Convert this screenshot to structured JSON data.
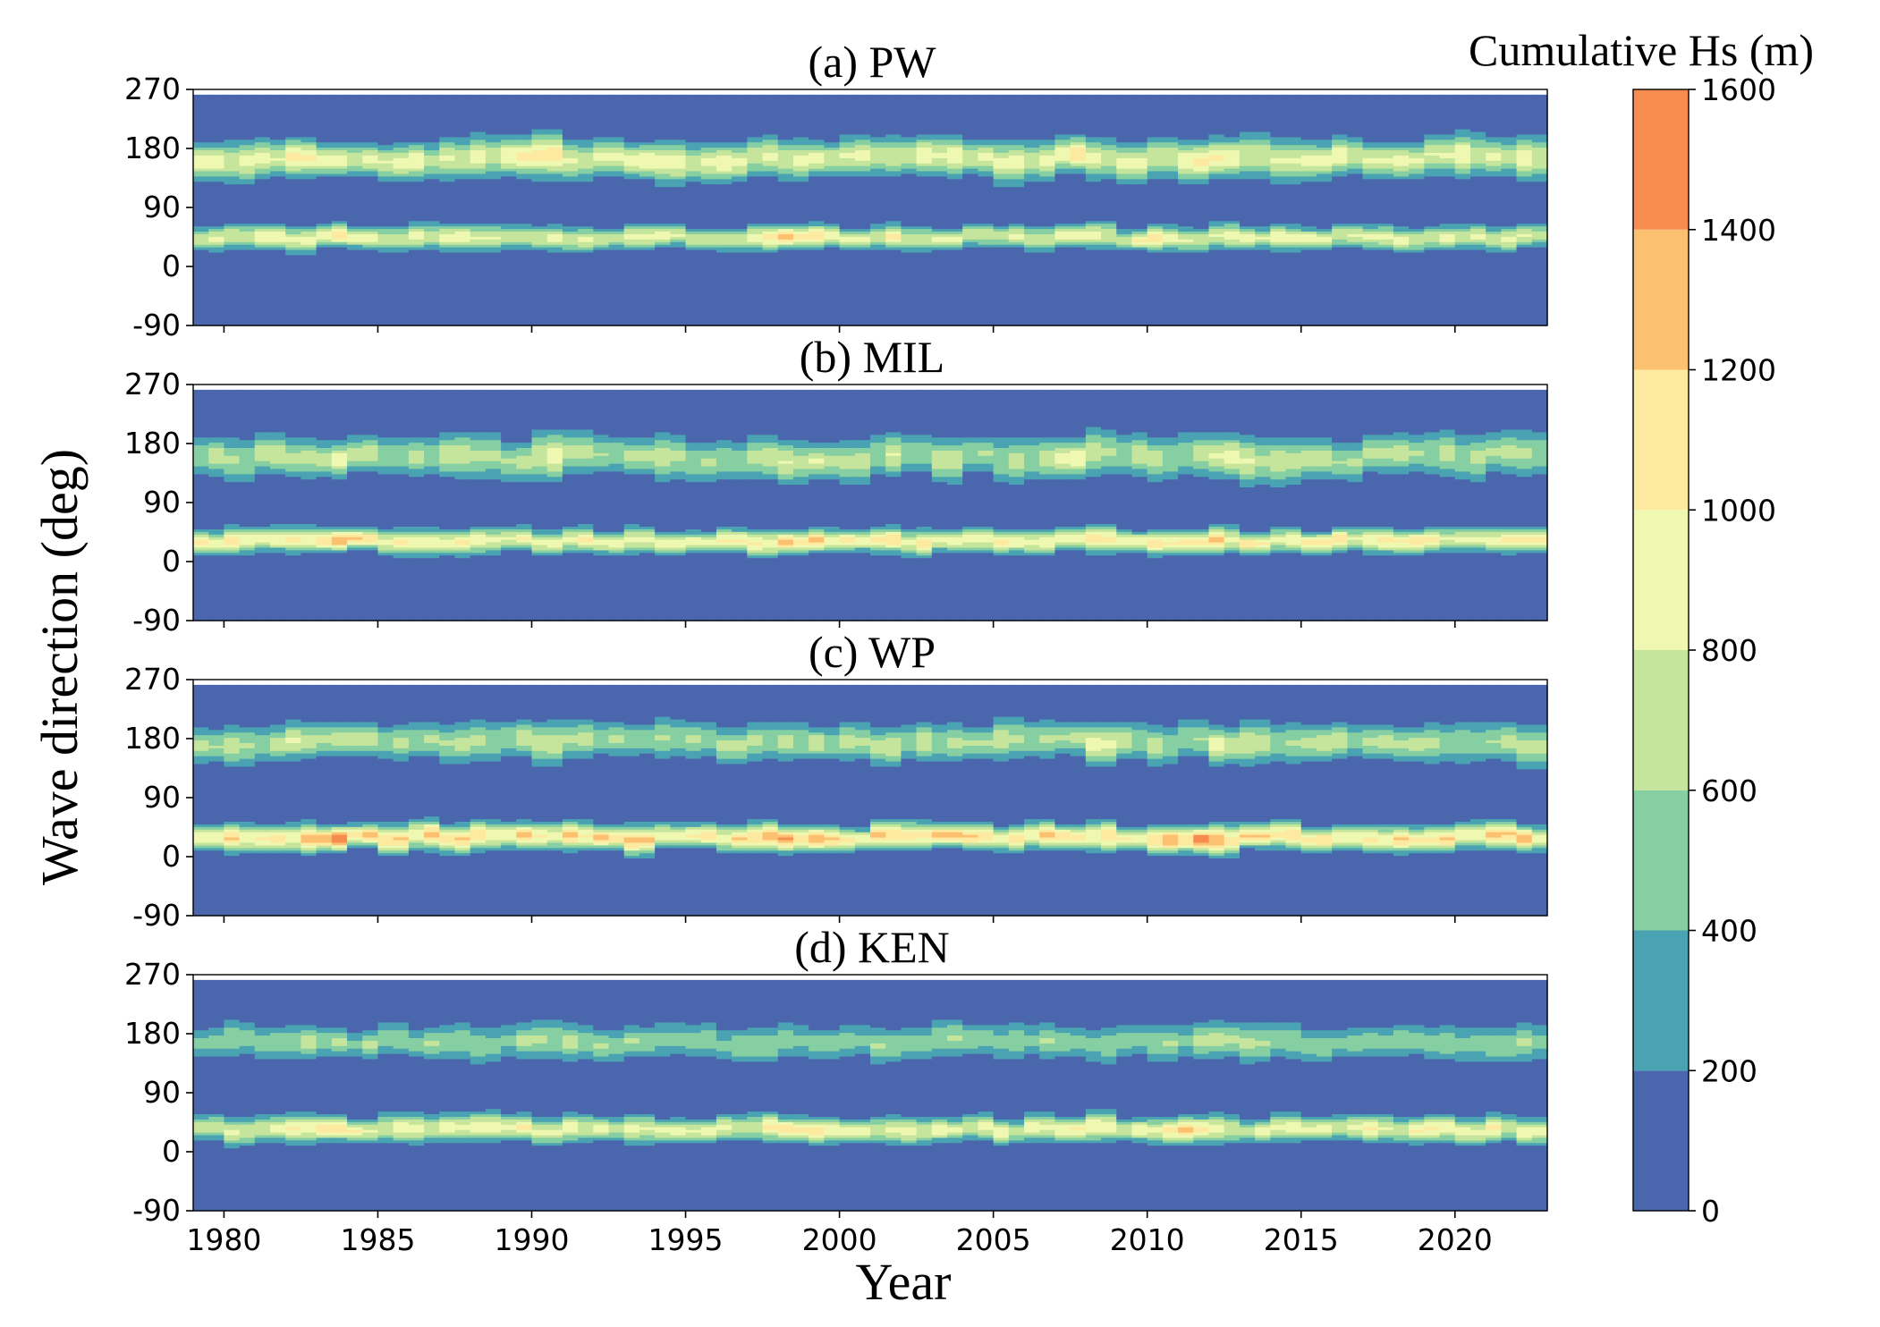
{
  "colorbar": {
    "title": "Cumulative Hs (m)",
    "levels": [
      0,
      200,
      400,
      600,
      800,
      1000,
      1200,
      1400,
      1600
    ],
    "tick_labels": [
      "0",
      "200",
      "400",
      "600",
      "800",
      "1000",
      "1200",
      "1400",
      "1600"
    ],
    "colors": [
      "#4a66ad",
      "#4aa3b2",
      "#86cfa3",
      "#c6e59c",
      "#eff8b0",
      "#fdeaa0",
      "#fbc070",
      "#f68c50"
    ]
  },
  "chart_data": [
    {
      "type": "heatmap",
      "subplot": "(a) PW",
      "title": "(a) PW",
      "xlabel": "Year",
      "ylabel": "Wave direction (deg)",
      "xlim": [
        1979,
        2023
      ],
      "ylim": [
        -90,
        270
      ],
      "x_ticks": [
        1980,
        1985,
        1990,
        1995,
        2000,
        2005,
        2010,
        2015,
        2020
      ],
      "x_tick_labels": [
        "1980",
        "1985",
        "1990",
        "1995",
        "2000",
        "2005",
        "2010",
        "2015",
        "2020"
      ],
      "y_ticks": [
        -90,
        0,
        90,
        180,
        270
      ],
      "y_tick_labels": [
        "-90",
        "0",
        "90",
        "180",
        "270"
      ],
      "data_top_deg": 262,
      "bands": [
        {
          "center_deg": 165,
          "sigma_deg": 18,
          "peak_hs": 1100,
          "peak_years": [
            1982,
            1990,
            2007,
            2012
          ]
        },
        {
          "center_deg": 45,
          "sigma_deg": 11,
          "peak_hs": 1150,
          "peak_years": [
            1983,
            1998,
            2010
          ]
        }
      ]
    },
    {
      "type": "heatmap",
      "subplot": "(b) MIL",
      "title": "(b) MIL",
      "xlabel": "Year",
      "ylabel": "Wave direction (deg)",
      "xlim": [
        1979,
        2023
      ],
      "ylim": [
        -90,
        270
      ],
      "x_ticks": [
        1980,
        1985,
        1990,
        1995,
        2000,
        2005,
        2010,
        2015,
        2020
      ],
      "x_tick_labels": [
        "1980",
        "1985",
        "1990",
        "1995",
        "2000",
        "2005",
        "2010",
        "2015",
        "2020"
      ],
      "y_ticks": [
        -90,
        0,
        90,
        180,
        270
      ],
      "y_tick_labels": [
        "-90",
        "0",
        "90",
        "180",
        "270"
      ],
      "data_top_deg": 262,
      "bands": [
        {
          "center_deg": 160,
          "sigma_deg": 20,
          "peak_hs": 900,
          "peak_years": [
            1983,
            1990,
            2007,
            2012
          ]
        },
        {
          "center_deg": 32,
          "sigma_deg": 11,
          "peak_hs": 1300,
          "peak_years": [
            1983,
            1998,
            2011
          ]
        }
      ]
    },
    {
      "type": "heatmap",
      "subplot": "(c) WP",
      "title": "(c) WP",
      "xlabel": "Year",
      "ylabel": "Wave direction (deg)",
      "xlim": [
        1979,
        2023
      ],
      "ylim": [
        -90,
        270
      ],
      "x_ticks": [
        1980,
        1985,
        1990,
        1995,
        2000,
        2005,
        2010,
        2015,
        2020
      ],
      "x_tick_labels": [
        "1980",
        "1985",
        "1990",
        "1995",
        "2000",
        "2005",
        "2010",
        "2015",
        "2020"
      ],
      "y_ticks": [
        -90,
        0,
        90,
        180,
        270
      ],
      "y_tick_labels": [
        "-90",
        "0",
        "90",
        "180",
        "270"
      ],
      "data_top_deg": 262,
      "bands": [
        {
          "center_deg": 175,
          "sigma_deg": 18,
          "peak_hs": 850,
          "peak_years": [
            1982,
            1990,
            2008,
            2012
          ]
        },
        {
          "center_deg": 30,
          "sigma_deg": 12,
          "peak_hs": 1450,
          "peak_years": [
            1983,
            1998,
            2011
          ]
        }
      ]
    },
    {
      "type": "heatmap",
      "subplot": "(d) KEN",
      "title": "(d) KEN",
      "xlabel": "Year",
      "ylabel": "Wave direction (deg)",
      "xlim": [
        1979,
        2023
      ],
      "ylim": [
        -90,
        270
      ],
      "x_ticks": [
        1980,
        1985,
        1990,
        1995,
        2000,
        2005,
        2010,
        2015,
        2020
      ],
      "x_tick_labels": [
        "1980",
        "1985",
        "1990",
        "1995",
        "2000",
        "2005",
        "2010",
        "2015",
        "2020"
      ],
      "y_ticks": [
        -90,
        0,
        90,
        180,
        270
      ],
      "y_tick_labels": [
        "-90",
        "0",
        "90",
        "180",
        "270"
      ],
      "data_top_deg": 262,
      "bands": [
        {
          "center_deg": 168,
          "sigma_deg": 17,
          "peak_hs": 700,
          "peak_years": [
            1982,
            1990,
            2012
          ]
        },
        {
          "center_deg": 35,
          "sigma_deg": 12,
          "peak_hs": 1150,
          "peak_years": [
            1983,
            1998,
            2011
          ]
        }
      ]
    }
  ]
}
